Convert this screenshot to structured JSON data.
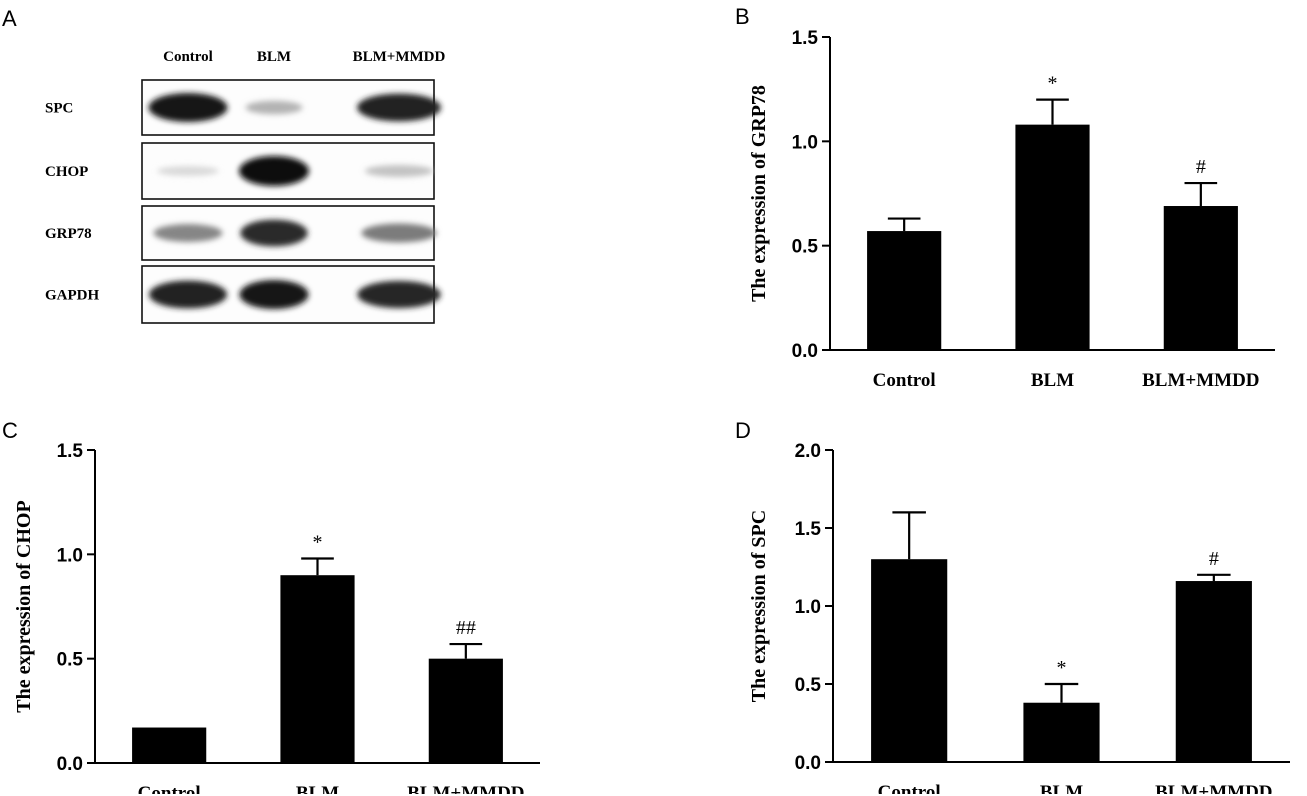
{
  "western_blot": {
    "panel_letter": "A",
    "lanes": [
      "Control",
      "BLM",
      "BLM+MMDD"
    ],
    "rows": [
      {
        "label": "SPC",
        "intensity": [
          0.95,
          0.25,
          0.9
        ]
      },
      {
        "label": "CHOP",
        "intensity": [
          0.08,
          1.0,
          0.18
        ]
      },
      {
        "label": "GRP78",
        "intensity": [
          0.45,
          0.85,
          0.5
        ]
      },
      {
        "label": "GAPDH",
        "intensity": [
          0.9,
          0.95,
          0.88
        ]
      }
    ]
  },
  "chart_data": [
    {
      "panel_letter": "B",
      "type": "bar",
      "categories": [
        "Control",
        "BLM",
        "BLM+MMDD"
      ],
      "values": [
        0.57,
        1.08,
        0.69
      ],
      "errors": [
        0.06,
        0.12,
        0.11
      ],
      "significance": [
        "",
        "*",
        "#"
      ],
      "ylabel": "The expression of GRP78",
      "ylim": [
        0,
        1.5
      ],
      "yticks": [
        "0.0",
        "0.5",
        "1.0",
        "1.5"
      ]
    },
    {
      "panel_letter": "C",
      "type": "bar",
      "categories": [
        "Control",
        "BLM",
        "BLM+MMDD"
      ],
      "values": [
        0.17,
        0.9,
        0.5
      ],
      "errors": [
        0.0,
        0.08,
        0.07
      ],
      "significance": [
        "",
        "*",
        "##"
      ],
      "ylabel": "The expression of CHOP",
      "ylim": [
        0,
        1.5
      ],
      "yticks": [
        "0.0",
        "0.5",
        "1.0",
        "1.5"
      ]
    },
    {
      "panel_letter": "D",
      "type": "bar",
      "categories": [
        "Control",
        "BLM",
        "BLM+MMDD"
      ],
      "values": [
        1.3,
        0.38,
        1.16
      ],
      "errors": [
        0.3,
        0.12,
        0.04
      ],
      "significance": [
        "",
        "*",
        "#"
      ],
      "ylabel": "The expression of  SPC",
      "ylim": [
        0,
        2.0
      ],
      "yticks": [
        "0.0",
        "0.5",
        "1.0",
        "1.5",
        "2.0"
      ]
    }
  ]
}
